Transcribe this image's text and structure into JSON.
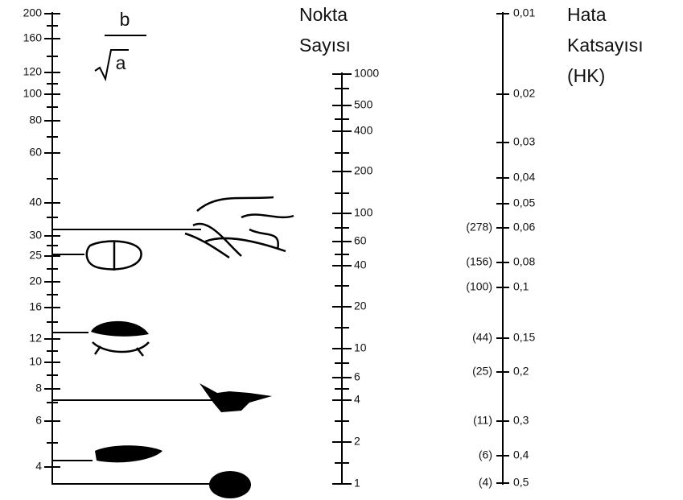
{
  "left_scale": {
    "formula": {
      "numerator": "b",
      "denominator": "a"
    },
    "labels": [
      "200",
      "160",
      "120",
      "100",
      "80",
      "60",
      "40",
      "30",
      "25",
      "20",
      "16",
      "12",
      "10",
      "8",
      "6",
      "4"
    ]
  },
  "middle_scale": {
    "title": [
      "Nokta",
      "Sayısı"
    ],
    "labels": [
      "1000",
      "500",
      "400",
      "200",
      "100",
      "60",
      "40",
      "20",
      "10",
      "6",
      "4",
      "2",
      "1"
    ]
  },
  "right_scale": {
    "title": [
      "Hata",
      "Katsayısı",
      "(HK)"
    ],
    "labels": [
      "0,01",
      "0,02",
      "0,03",
      "0,04",
      "0,05",
      "0,06",
      "0,08",
      "0,1",
      "0,15",
      "0,2",
      "0,3",
      "0,4",
      "0,5"
    ],
    "counts": [
      "(278)",
      "(156)",
      "(100)",
      "(44)",
      "(25)",
      "(11)",
      "(6)",
      "(4)"
    ]
  }
}
